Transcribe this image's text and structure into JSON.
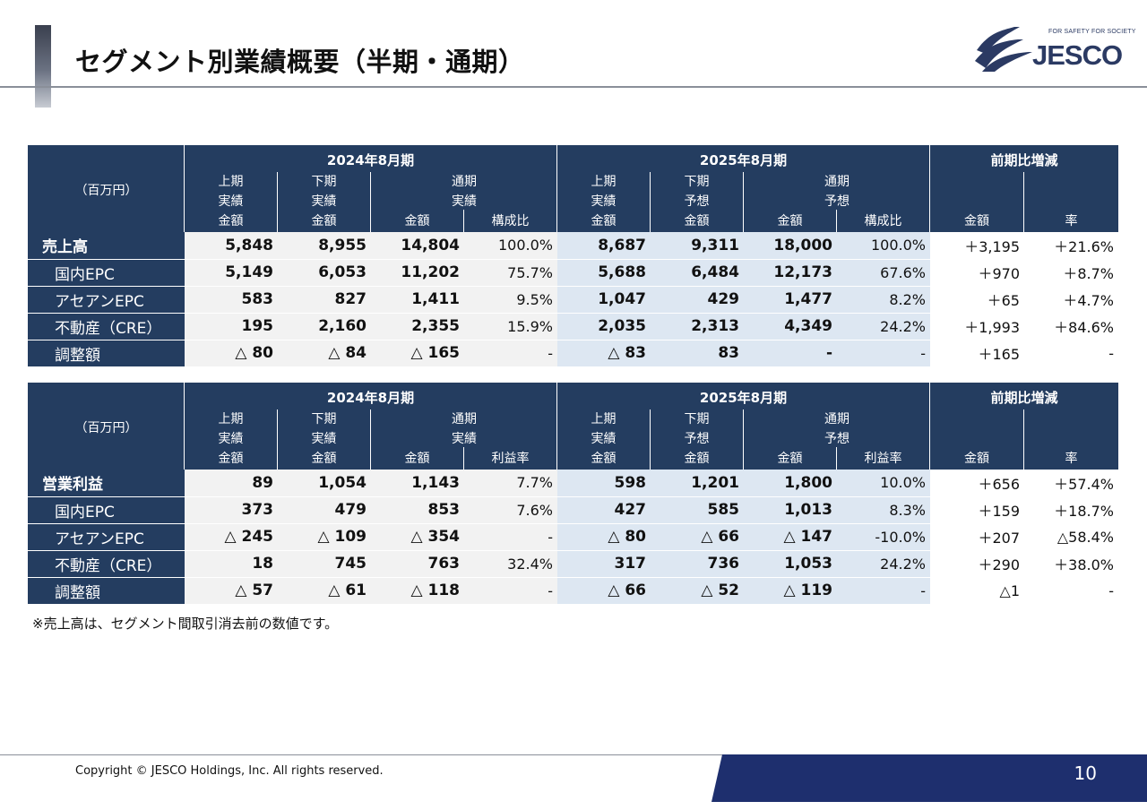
{
  "header": {
    "title": "セグメント別業績概要（半期・通期）"
  },
  "logo": {
    "tagline": "FOR SAFETY FOR SOCIETY",
    "text": "JESCO"
  },
  "colors": {
    "navy": "#243d60",
    "fy24_fill": "#f2f2f2",
    "fy25_fill": "#dde7f2",
    "footer_band": "#1e2f6e"
  },
  "sales_table": {
    "unit": "（百万円）",
    "group_fy24": "2024年8月期",
    "group_fy25": "2025年8月期",
    "group_change": "前期比増減",
    "sub": {
      "c1": [
        "上期",
        "実績",
        "金額"
      ],
      "c2": [
        "下期",
        "実績",
        "金額"
      ],
      "c3": [
        "通期",
        "実績"
      ],
      "c3a": "金額",
      "c3b": "構成比",
      "c5": [
        "上期",
        "実績",
        "金額"
      ],
      "c6": [
        "下期",
        "予想",
        "金額"
      ],
      "c7": [
        "通期",
        "予想"
      ],
      "c7a": "金額",
      "c7b": "構成比",
      "c9": "金額",
      "c10": "率"
    },
    "rows": [
      {
        "label": "売上高",
        "v": [
          "5,848",
          "8,955",
          "14,804",
          "100.0%",
          "8,687",
          "9,311",
          "18,000",
          "100.0%",
          "＋3,195",
          "＋21.6%"
        ]
      },
      {
        "label": "国内EPC",
        "v": [
          "5,149",
          "6,053",
          "11,202",
          "75.7%",
          "5,688",
          "6,484",
          "12,173",
          "67.6%",
          "＋970",
          "＋8.7%"
        ]
      },
      {
        "label": "アセアンEPC",
        "v": [
          "583",
          "827",
          "1,411",
          "9.5%",
          "1,047",
          "429",
          "1,477",
          "8.2%",
          "＋65",
          "＋4.7%"
        ]
      },
      {
        "label": "不動産（CRE）",
        "v": [
          "195",
          "2,160",
          "2,355",
          "15.9%",
          "2,035",
          "2,313",
          "4,349",
          "24.2%",
          "＋1,993",
          "＋84.6%"
        ]
      },
      {
        "label": "調整額",
        "v": [
          "△ 80",
          "△ 84",
          "△ 165",
          "-",
          "△ 83",
          "83",
          "-",
          "-",
          "＋165",
          "-"
        ]
      }
    ]
  },
  "profit_table": {
    "unit": "（百万円）",
    "group_fy24": "2024年8月期",
    "group_fy25": "2025年8月期",
    "group_change": "前期比増減",
    "sub": {
      "c1": [
        "上期",
        "実績",
        "金額"
      ],
      "c2": [
        "下期",
        "実績",
        "金額"
      ],
      "c3": [
        "通期",
        "実績"
      ],
      "c3a": "金額",
      "c3b": "利益率",
      "c5": [
        "上期",
        "実績",
        "金額"
      ],
      "c6": [
        "下期",
        "予想",
        "金額"
      ],
      "c7": [
        "通期",
        "予想"
      ],
      "c7a": "金額",
      "c7b": "利益率",
      "c9": "金額",
      "c10": "率"
    },
    "rows": [
      {
        "label": "営業利益",
        "v": [
          "89",
          "1,054",
          "1,143",
          "7.7%",
          "598",
          "1,201",
          "1,800",
          "10.0%",
          "＋656",
          "＋57.4%"
        ]
      },
      {
        "label": "国内EPC",
        "v": [
          "373",
          "479",
          "853",
          "7.6%",
          "427",
          "585",
          "1,013",
          "8.3%",
          "＋159",
          "＋18.7%"
        ]
      },
      {
        "label": "アセアンEPC",
        "v": [
          "△ 245",
          "△ 109",
          "△ 354",
          "-",
          "△ 80",
          "△ 66",
          "△ 147",
          "-10.0%",
          "＋207",
          "△58.4%"
        ]
      },
      {
        "label": "不動産（CRE）",
        "v": [
          "18",
          "745",
          "763",
          "32.4%",
          "317",
          "736",
          "1,053",
          "24.2%",
          "＋290",
          "＋38.0%"
        ]
      },
      {
        "label": "調整額",
        "v": [
          "△ 57",
          "△ 61",
          "△ 118",
          "-",
          "△ 66",
          "△ 52",
          "△ 119",
          "-",
          "△1",
          "-"
        ]
      }
    ]
  },
  "note": "※売上高は、セグメント間取引消去前の数値です。",
  "footer": {
    "copyright": "Copyright  ©  JESCO Holdings,  Inc.   All rights reserved.",
    "page": "10"
  }
}
